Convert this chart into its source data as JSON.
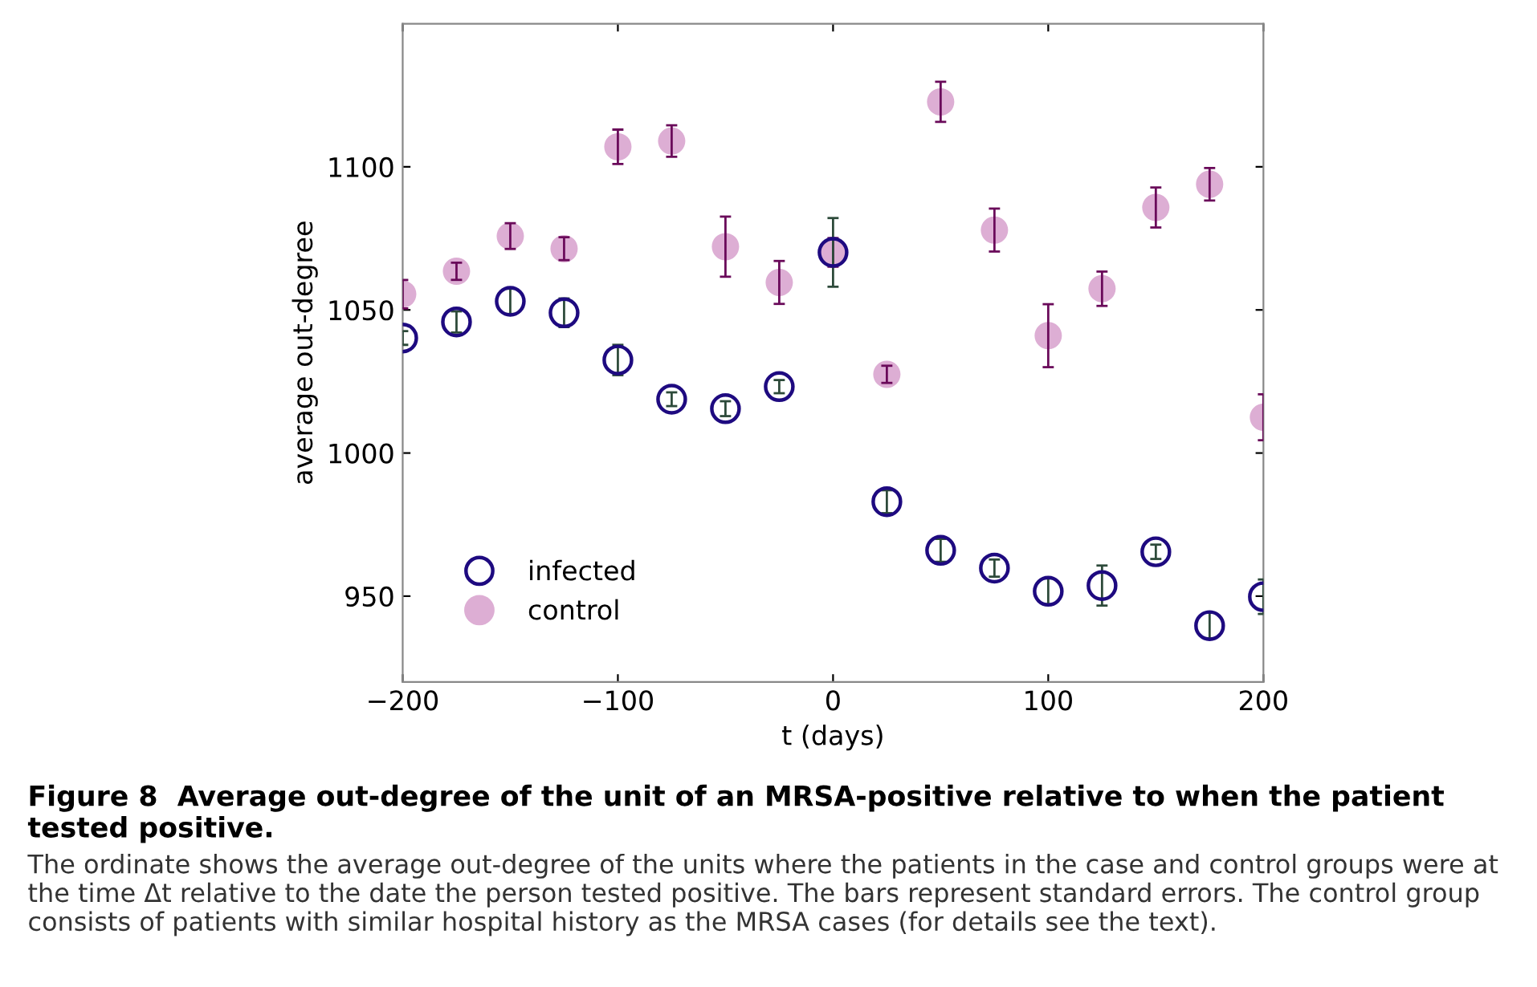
{
  "chart_data": {
    "type": "scatter",
    "title": "Figure 8  Average out-degree of the unit of an MRSA-positive relative to when the patient tested positive.",
    "xlabel": "t (days)",
    "ylabel": "average out-degree",
    "x": [
      -200,
      -175,
      -150,
      -125,
      -100,
      -75,
      -50,
      -25,
      0,
      25,
      50,
      75,
      100,
      125,
      150,
      175,
      200
    ],
    "series": [
      {
        "name": "infected",
        "color": "#1e0a80",
        "values": [
          1040.2,
          1045.8,
          1053,
          1049,
          1032.5,
          1018.8,
          1015.5,
          1023.2,
          1070.1,
          983,
          966,
          959.8,
          951.7,
          953.7,
          965.5,
          939.7,
          949.8
        ],
        "errors": [
          2.4,
          3.7,
          4.4,
          5,
          5.3,
          2.4,
          2.6,
          2.3,
          12,
          4,
          4,
          3,
          4.5,
          7,
          2.5,
          4.5,
          6
        ]
      },
      {
        "name": "control",
        "color": "#ddaed4",
        "values": [
          1055.5,
          1063.5,
          1075.8,
          1071.4,
          1107,
          1109,
          1072.1,
          1059.6,
          1070.1,
          1027.5,
          1122.7,
          1077.9,
          1041,
          1057.4,
          1085.8,
          1093.9,
          1012.5
        ],
        "errors": [
          5,
          3,
          4.5,
          4,
          6,
          5.5,
          10.5,
          7.5,
          5,
          3,
          7,
          7.5,
          11,
          6,
          7,
          5.7,
          8
        ]
      }
    ],
    "xlim": [
      -200,
      200
    ],
    "ylim": [
      920,
      1150
    ],
    "xticks": [
      -200,
      -100,
      0,
      100,
      200
    ],
    "yticks": [
      950,
      1000,
      1050,
      1100
    ],
    "marker": "circle",
    "legend": "bottom left",
    "grid": false,
    "annotations": [
      "The ordinate shows the average out-degree of the units where the patients in the case and control groups were at the time Δt relative to the date the person tested positive. The bars represent standard errors. The control group consists of patients with similar hospital history as the MRSA cases (for details see the text)."
    ]
  }
}
